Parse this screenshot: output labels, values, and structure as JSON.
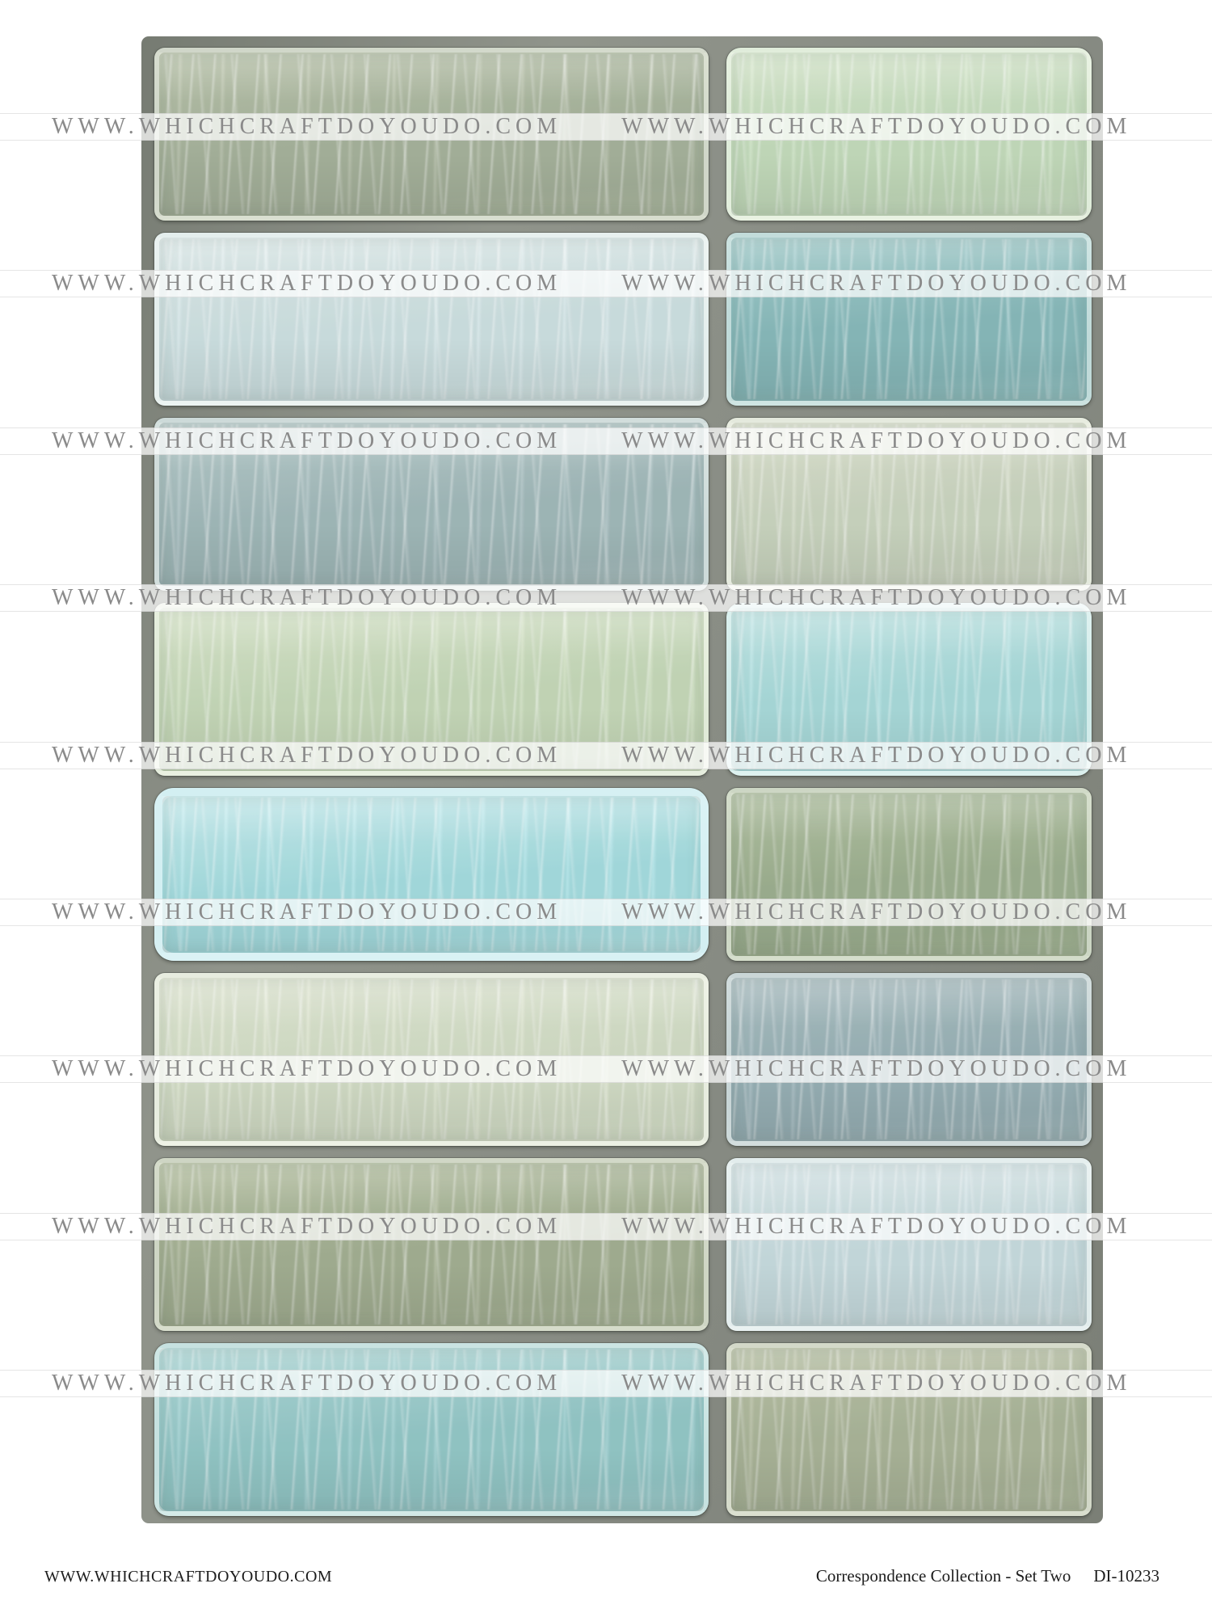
{
  "watermark": {
    "text": "WWW.WHICHCRAFTDOYOUDO.COM",
    "color": "#8a8a8a",
    "band_count": 9
  },
  "footer": {
    "left_url": "WWW.WHICHCRAFTDOYOUDO.COM",
    "title": "Correspondence Collection - Set Two",
    "code": "DI-10233"
  },
  "grid": {
    "rows": 8,
    "columns": 2,
    "grout_color": "#868a82"
  },
  "tiles": [
    {
      "row": 1,
      "left": {
        "name": "sage-green",
        "base": "#a6b19a",
        "light": "#bcc5ac"
      },
      "right": {
        "name": "pale-mint-green",
        "base": "#c5dcbc",
        "light": "#d9e9ce"
      }
    },
    {
      "row": 2,
      "left": {
        "name": "pale-ice-blue",
        "base": "#cfe1e3",
        "light": "#e0ecec"
      },
      "right": {
        "name": "teal",
        "base": "#87b9bb",
        "light": "#a6cfcf"
      }
    },
    {
      "row": 3,
      "left": {
        "name": "slate-teal",
        "base": "#a1b8ba",
        "light": "#b8cbcb"
      },
      "right": {
        "name": "celadon",
        "base": "#ccd5c0",
        "light": "#dde2cf"
      }
    },
    {
      "row": 4,
      "left": {
        "name": "pale-green",
        "base": "#c7d9b9",
        "light": "#dae6cb"
      },
      "right": {
        "name": "aqua",
        "base": "#a9dbdc",
        "light": "#c4e8e8"
      }
    },
    {
      "row": 5,
      "left": {
        "name": "bright-cyan",
        "base": "#a5dde1",
        "light": "#c9eef1"
      },
      "right": {
        "name": "olive-sage",
        "base": "#9dae8e",
        "light": "#b3c2a2"
      }
    },
    {
      "row": 6,
      "left": {
        "name": "pale-celadon",
        "base": "#d4ddc6",
        "light": "#e2e8d4"
      },
      "right": {
        "name": "slate-blue",
        "base": "#97afb5",
        "light": "#adc0c4"
      }
    },
    {
      "row": 7,
      "left": {
        "name": "sage",
        "base": "#a3ae91",
        "light": "#b8c2a3"
      },
      "right": {
        "name": "pale-blue",
        "base": "#c9dce0",
        "light": "#dae8eb"
      }
    },
    {
      "row": 8,
      "left": {
        "name": "teal-aqua",
        "base": "#93c7c8",
        "light": "#b0d9d9"
      },
      "right": {
        "name": "olive-green",
        "base": "#aab397",
        "light": "#bdc4a8"
      }
    }
  ]
}
